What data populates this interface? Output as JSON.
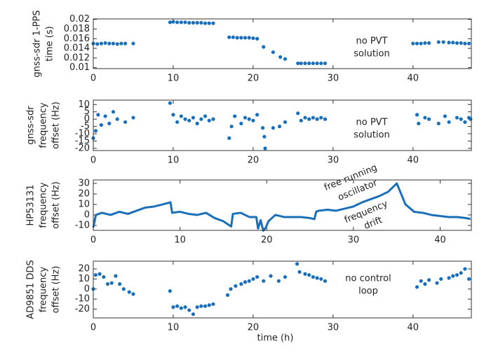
{
  "chart_data": [
    {
      "type": "scatter",
      "ylabel": [
        "gnss-sdr 1-PPS",
        "time (s)"
      ],
      "annotations": [
        "no PVT",
        "solution"
      ],
      "color": "#1a6fb8",
      "x": [
        0,
        0.5,
        1,
        1.5,
        2,
        2.5,
        3,
        3.5,
        4,
        5,
        9.6,
        10,
        10.5,
        11,
        11.5,
        12,
        12.5,
        13,
        13.5,
        14,
        14.5,
        15,
        17,
        17.5,
        18,
        18.5,
        19,
        19.5,
        20,
        20.5,
        21.3,
        22.5,
        23.4,
        24,
        25.6,
        26,
        26.5,
        27,
        27.5,
        28,
        28.5,
        29,
        40,
        40.5,
        41,
        41.5,
        42,
        43.2,
        43.8,
        44.5,
        45,
        45.5,
        46,
        46.5,
        47
      ],
      "values": [
        0.015,
        0.0149,
        0.015,
        0.0151,
        0.015,
        0.015,
        0.0149,
        0.015,
        0.015,
        0.015,
        0.0194,
        0.0195,
        0.0194,
        0.0194,
        0.0194,
        0.0193,
        0.0193,
        0.0193,
        0.0193,
        0.0192,
        0.0192,
        0.0192,
        0.0163,
        0.0163,
        0.0162,
        0.0162,
        0.0162,
        0.0162,
        0.0161,
        0.016,
        0.0143,
        0.0132,
        0.0122,
        0.0118,
        0.0109,
        0.0109,
        0.0109,
        0.0109,
        0.0109,
        0.0109,
        0.0109,
        0.0109,
        0.015,
        0.015,
        0.015,
        0.0151,
        0.0151,
        0.0153,
        0.0153,
        0.0152,
        0.0152,
        0.0151,
        0.0151,
        0.015,
        0.015
      ],
      "xlim": [
        0,
        47.3
      ],
      "xticks": [
        0,
        10,
        20,
        30,
        40
      ],
      "ylim": [
        0.0098,
        0.0201
      ],
      "yticks": [
        0.01,
        0.012,
        0.014,
        0.016,
        0.018,
        0.02
      ]
    },
    {
      "type": "scatter",
      "ylabel": [
        "gnss-sdr",
        "frequency",
        "offset (Hz)"
      ],
      "annotations": [
        "no PVT",
        "solution"
      ],
      "color": "#1a6fb8",
      "x": [
        0,
        0.3,
        0.6,
        1,
        1.5,
        2,
        2.5,
        3,
        4,
        5,
        9.6,
        10,
        10.5,
        11,
        11.5,
        12,
        12.5,
        13,
        13.5,
        14,
        14.5,
        15,
        17,
        17.3,
        17.7,
        18.5,
        19,
        19.5,
        20,
        20.5,
        21.2,
        21.4,
        21.5,
        22.5,
        23.3,
        24,
        25.6,
        26,
        26.5,
        27,
        27.5,
        28,
        28.5,
        29,
        40.5,
        40.7,
        41.5,
        42,
        43.2,
        44,
        44.5,
        45.5,
        46,
        46.5,
        47,
        47.2
      ],
      "values": [
        -13,
        -8,
        3,
        -4,
        2,
        -3,
        5,
        0,
        -2,
        1,
        11,
        3,
        -2,
        2,
        0,
        -1,
        1,
        -3,
        0,
        2,
        -1,
        0,
        -13,
        -5,
        2,
        -3,
        1,
        0,
        -1,
        3,
        -6,
        -12,
        -20,
        -6,
        -5,
        -2,
        4,
        -1,
        1,
        0,
        1,
        0,
        1,
        0,
        3,
        -3,
        1,
        0,
        -3,
        2,
        -2,
        1,
        0,
        -2,
        1,
        0
      ],
      "xlim": [
        0,
        47.3
      ],
      "xticks": [
        0,
        10,
        20,
        30,
        40
      ],
      "ylim": [
        -21.5,
        13
      ],
      "yticks": [
        10,
        5,
        0,
        -5,
        -10,
        -15,
        -20
      ]
    },
    {
      "type": "line",
      "ylabel": [
        "HP53131",
        "frequency",
        "offset  (Hz)"
      ],
      "annotations": [
        "free running",
        "oscillator",
        "frequency",
        "drift"
      ],
      "color": "#1a6fb8",
      "x": [
        0,
        0.3,
        1,
        2,
        3,
        4,
        5,
        6,
        7,
        8,
        8.9,
        9.1,
        10,
        11,
        12,
        13,
        14,
        15,
        15.9,
        16.1,
        17,
        18,
        18.8,
        19,
        19.3,
        19.6,
        19.9,
        20.2,
        21,
        22,
        23,
        24,
        25,
        25.5,
        25.7,
        26,
        27,
        28,
        29,
        30,
        31,
        32,
        33,
        34,
        35,
        36,
        37,
        38,
        39,
        40,
        41,
        42,
        43,
        43.5
      ],
      "values": [
        -12,
        0,
        2,
        0,
        3,
        1,
        4,
        7,
        8,
        10,
        12,
        2,
        3,
        1,
        0,
        2,
        -3,
        -6,
        -11,
        1,
        2,
        -2,
        -2,
        -13,
        -5,
        -15,
        -12,
        -6,
        0,
        -2,
        -2,
        -2,
        -3,
        -4,
        3,
        4,
        5,
        4,
        6,
        8,
        12,
        15,
        18,
        22,
        30,
        10,
        3,
        2,
        0,
        -1,
        -2,
        -2,
        -3,
        -4
      ],
      "xlim": [
        0,
        43.6
      ],
      "xticks": [
        0,
        10,
        20,
        30,
        40
      ],
      "ylim": [
        -14.7,
        33.3
      ],
      "yticks": [
        30,
        20,
        10,
        0,
        -10
      ]
    },
    {
      "type": "scatter",
      "ylabel": [
        "AD9851 DDS",
        "frequency",
        "offset (Hz)"
      ],
      "annotations": [
        "no control",
        "loop"
      ],
      "xlabel": "time (h)",
      "color": "#1a6fb8",
      "x": [
        0,
        0.3,
        0.8,
        1.3,
        1.8,
        2.3,
        2.8,
        3.3,
        3.8,
        4.5,
        5,
        9.6,
        10,
        10.5,
        11,
        11.5,
        12,
        12.5,
        13,
        13.5,
        14,
        14.5,
        15,
        16.8,
        17.2,
        17.8,
        18.5,
        19,
        19.5,
        20,
        20.5,
        21.3,
        22.2,
        23.2,
        24,
        25.5,
        25.8,
        26.5,
        27,
        27.5,
        28,
        28.5,
        29,
        40.5,
        41,
        41.5,
        42,
        43,
        43.5,
        44.5,
        45,
        45.5,
        46,
        46.5,
        47
      ],
      "values": [
        0,
        14,
        15,
        12,
        5,
        6,
        13,
        5,
        0,
        -3,
        -5,
        -2,
        -18,
        -17,
        -19,
        -18,
        -21,
        -25,
        -18,
        -17,
        -17,
        -16,
        -15,
        -6,
        0,
        3,
        5,
        7,
        8,
        10,
        12,
        8,
        13,
        8,
        12,
        25,
        17,
        15,
        14,
        12,
        11,
        10,
        8,
        2,
        8,
        5,
        9,
        6,
        10,
        11,
        13,
        14,
        16,
        20,
        10
      ],
      "xlim": [
        0,
        47.3
      ],
      "xticks": [
        0,
        10,
        20,
        30,
        40
      ],
      "ylim": [
        -28.7,
        27.7
      ],
      "yticks": [
        20,
        10,
        0,
        -10,
        -20
      ]
    }
  ]
}
